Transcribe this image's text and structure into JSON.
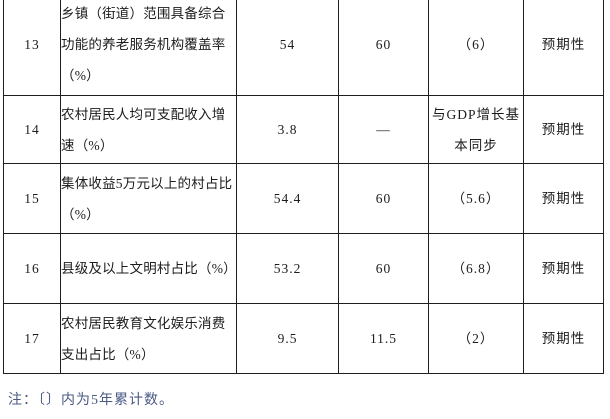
{
  "colors": {
    "page_background": "#ffffff",
    "table_border": "#1e1e1e",
    "table_text": "#1c1c1c",
    "note_text": "#4b5a82"
  },
  "table": {
    "rows": [
      {
        "no": "13",
        "indicator": "乡镇（街道）范围具备综合功能的养老服务机构覆盖率（%）",
        "value": "54",
        "target": "60",
        "cumulative": "（6）",
        "attribute": "预期性"
      },
      {
        "no": "14",
        "indicator": "农村居民人均可支配收入增速（%）",
        "value": "3.8",
        "target": "—",
        "cumulative": "与GDP增长基本同步",
        "attribute": "预期性"
      },
      {
        "no": "15",
        "indicator": "集体收益5万元以上的村占比（%）",
        "value": "54.4",
        "target": "60",
        "cumulative": "（5.6）",
        "attribute": "预期性"
      },
      {
        "no": "16",
        "indicator": "县级及以上文明村占比（%）",
        "value": "53.2",
        "target": "60",
        "cumulative": "（6.8）",
        "attribute": "预期性"
      },
      {
        "no": "17",
        "indicator": "农村居民教育文化娱乐消费支出占比（%）",
        "value": "9.5",
        "target": "11.5",
        "cumulative": "（2）",
        "attribute": "预期性"
      }
    ]
  },
  "note": {
    "text": "注：〔〕内为5年累计数。"
  }
}
